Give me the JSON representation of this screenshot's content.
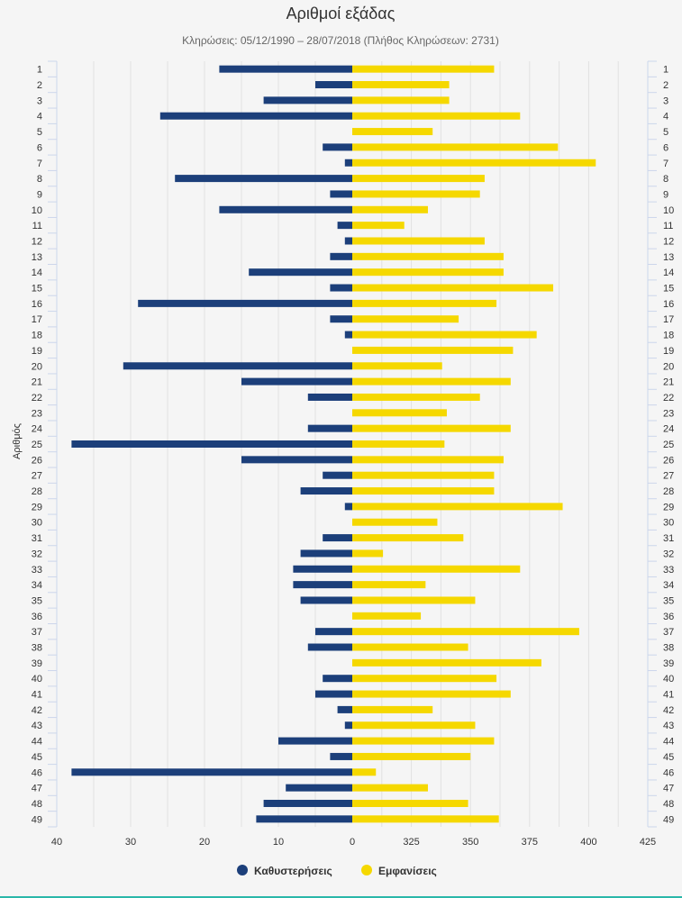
{
  "chart_data": {
    "type": "bar",
    "orientation": "horizontal",
    "title": "Αριθμοί εξάδας",
    "subtitle": "Κληρώσεις: 05/12/1990 – 28/07/2018 (Πλήθος Κληρώσεων: 2731)",
    "ylabel": "Αριθμός",
    "categories": [
      "1",
      "2",
      "3",
      "4",
      "5",
      "6",
      "7",
      "8",
      "9",
      "10",
      "11",
      "12",
      "13",
      "14",
      "15",
      "16",
      "17",
      "18",
      "19",
      "20",
      "21",
      "22",
      "23",
      "24",
      "25",
      "26",
      "27",
      "28",
      "29",
      "30",
      "31",
      "32",
      "33",
      "34",
      "35",
      "36",
      "37",
      "38",
      "39",
      "40",
      "41",
      "42",
      "43",
      "44",
      "45",
      "46",
      "47",
      "48",
      "49"
    ],
    "left_axis": {
      "range": [
        40,
        0
      ],
      "ticks": [
        40,
        30,
        20,
        10,
        0
      ]
    },
    "right_axis": {
      "range": [
        300,
        425
      ],
      "ticks": [
        325,
        350,
        375,
        400,
        425
      ]
    },
    "series": [
      {
        "name": "Καθυστερήσεις",
        "color": "#1c3f7a",
        "axis": "left",
        "values": [
          18,
          5,
          12,
          26,
          0,
          4,
          1,
          24,
          3,
          18,
          2,
          1,
          3,
          14,
          3,
          29,
          3,
          1,
          0,
          31,
          15,
          6,
          0,
          6,
          38,
          15,
          4,
          7,
          1,
          0,
          4,
          7,
          8,
          8,
          7,
          0,
          5,
          6,
          0,
          4,
          5,
          2,
          1,
          10,
          3,
          38,
          9,
          12,
          13
        ]
      },
      {
        "name": "Εμφανίσεις",
        "color": "#f5d800",
        "axis": "right",
        "values": [
          360,
          341,
          341,
          371,
          334,
          387,
          403,
          356,
          354,
          332,
          322,
          356,
          364,
          364,
          385,
          361,
          345,
          378,
          368,
          338,
          367,
          354,
          340,
          367,
          339,
          364,
          360,
          360,
          389,
          336,
          347,
          313,
          371,
          331,
          352,
          329,
          396,
          349,
          380,
          361,
          367,
          334,
          352,
          360,
          350,
          310,
          332,
          349,
          362
        ]
      }
    ],
    "legend": {
      "position": "bottom",
      "items": [
        "Καθυστερήσεις",
        "Εμφανίσεις"
      ]
    },
    "grid": true
  }
}
